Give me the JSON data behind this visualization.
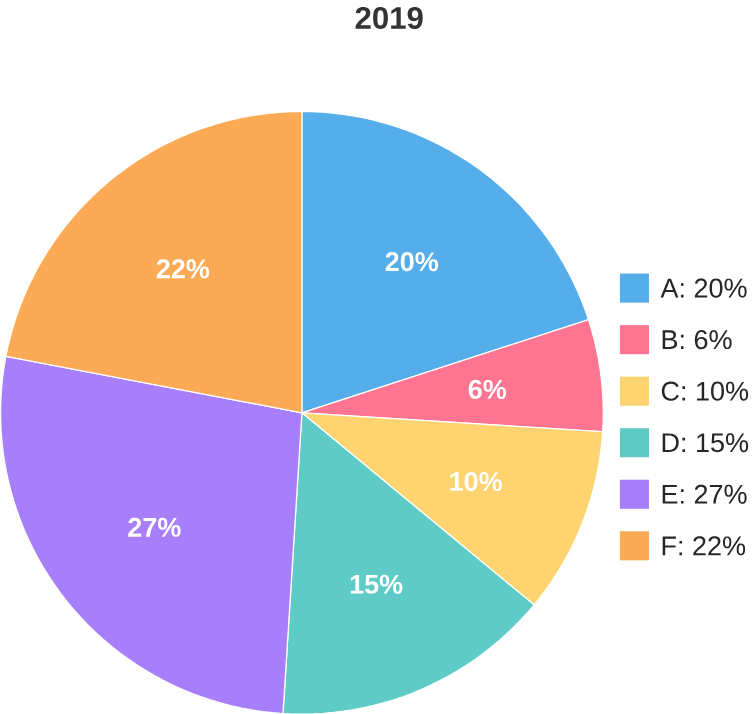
{
  "chart_data": {
    "type": "pie",
    "title": "2019",
    "categories": [
      "A: 20%",
      "B: 6%",
      "C: 10%",
      "D: 15%",
      "E: 27%",
      "F: 22%"
    ],
    "values": [
      20,
      6,
      10,
      15,
      27,
      22
    ],
    "value_labels": [
      "20%",
      "6%",
      "10%",
      "15%",
      "27%",
      "22%"
    ],
    "colors": [
      "#55aeea",
      "#fd7591",
      "#fdd46f",
      "#5ecbc7",
      "#a87ffb",
      "#fdaa57"
    ],
    "legend": "right"
  }
}
